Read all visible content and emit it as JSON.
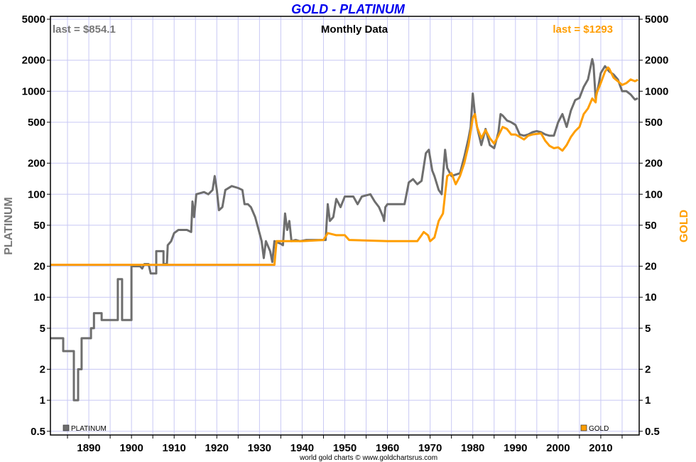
{
  "chart_data": {
    "type": "line",
    "title": "GOLD - PLATINUM",
    "subtitle": "Monthly Data",
    "credit": "world gold charts © www.goldchartsrus.com",
    "ylabel_left": "PLATINUM",
    "ylabel_right": "GOLD",
    "y_scale": "log",
    "ylim": [
      0.46,
      5330
    ],
    "xlim": [
      1881,
      2019
    ],
    "grid": true,
    "legend_placement": "bottom",
    "yticks": [
      0.5,
      1,
      2,
      5,
      10,
      20,
      50,
      100,
      200,
      500,
      1000,
      2000,
      5000
    ],
    "ytick_labels": [
      "0.5",
      "1",
      "2",
      "5",
      "10",
      "20",
      "50",
      "100",
      "200",
      "500",
      "1000",
      "2000",
      "5000"
    ],
    "xticks": [
      1890,
      1900,
      1910,
      1920,
      1930,
      1940,
      1950,
      1960,
      1970,
      1980,
      1990,
      2000,
      2010
    ],
    "xtick_labels": [
      "1890",
      "1900",
      "1910",
      "1920",
      "1930",
      "1940",
      "1950",
      "1960",
      "1970",
      "1980",
      "1990",
      "2000",
      "2010"
    ],
    "colors": {
      "platinum": "#6e6e6e",
      "gold": "#ff9e00",
      "title": "#0000ee",
      "grid": "#c8c8f4"
    },
    "series": [
      {
        "name": "PLATINUM",
        "last_label": "last = $854.1",
        "color": "#6e6e6e",
        "points": [
          [
            1881,
            4
          ],
          [
            1884,
            4
          ],
          [
            1884,
            3
          ],
          [
            1886.5,
            3
          ],
          [
            1886.5,
            1
          ],
          [
            1887.5,
            1
          ],
          [
            1887.5,
            2
          ],
          [
            1888.3,
            2
          ],
          [
            1888.3,
            4
          ],
          [
            1890.5,
            4
          ],
          [
            1890.5,
            5
          ],
          [
            1891.2,
            5
          ],
          [
            1891.2,
            7
          ],
          [
            1893,
            7
          ],
          [
            1893,
            6
          ],
          [
            1896.8,
            6
          ],
          [
            1896.8,
            15
          ],
          [
            1897.8,
            15
          ],
          [
            1897.8,
            6
          ],
          [
            1900,
            6
          ],
          [
            1900,
            20
          ],
          [
            1902,
            20
          ],
          [
            1902.5,
            19
          ],
          [
            1903,
            21
          ],
          [
            1904,
            21
          ],
          [
            1904.5,
            17
          ],
          [
            1905.8,
            17
          ],
          [
            1905.8,
            28
          ],
          [
            1907.5,
            28
          ],
          [
            1907.5,
            21
          ],
          [
            1908.3,
            21
          ],
          [
            1908.5,
            32
          ],
          [
            1909.3,
            35
          ],
          [
            1910,
            42
          ],
          [
            1911,
            45
          ],
          [
            1913,
            45
          ],
          [
            1914,
            43
          ],
          [
            1914.3,
            85
          ],
          [
            1914.7,
            60
          ],
          [
            1915.2,
            100
          ],
          [
            1917,
            105
          ],
          [
            1918,
            100
          ],
          [
            1919,
            110
          ],
          [
            1919.5,
            150
          ],
          [
            1920,
            110
          ],
          [
            1920.5,
            70
          ],
          [
            1921.3,
            75
          ],
          [
            1922,
            110
          ],
          [
            1923.5,
            120
          ],
          [
            1925,
            115
          ],
          [
            1926,
            110
          ],
          [
            1926.5,
            80
          ],
          [
            1927.3,
            80
          ],
          [
            1928,
            75
          ],
          [
            1929,
            60
          ],
          [
            1929.8,
            45
          ],
          [
            1930.5,
            35
          ],
          [
            1931,
            24
          ],
          [
            1931.5,
            35
          ],
          [
            1932.5,
            28
          ],
          [
            1933,
            22
          ],
          [
            1933.5,
            35
          ],
          [
            1935,
            33
          ],
          [
            1935.5,
            32
          ],
          [
            1936,
            65
          ],
          [
            1936.5,
            45
          ],
          [
            1937,
            55
          ],
          [
            1937.5,
            35
          ],
          [
            1938.5,
            36
          ],
          [
            1939.5,
            35
          ],
          [
            1941,
            36
          ],
          [
            1945.5,
            36
          ],
          [
            1946,
            80
          ],
          [
            1946.5,
            55
          ],
          [
            1947.3,
            60
          ],
          [
            1948,
            90
          ],
          [
            1949,
            75
          ],
          [
            1950,
            95
          ],
          [
            1952,
            95
          ],
          [
            1953,
            80
          ],
          [
            1954,
            95
          ],
          [
            1956,
            100
          ],
          [
            1957,
            85
          ],
          [
            1958,
            75
          ],
          [
            1959,
            60
          ],
          [
            1959.2,
            55
          ],
          [
            1959.5,
            75
          ],
          [
            1960,
            80
          ],
          [
            1963,
            80
          ],
          [
            1964,
            80
          ],
          [
            1965,
            130
          ],
          [
            1966,
            140
          ],
          [
            1967,
            125
          ],
          [
            1968,
            135
          ],
          [
            1969,
            250
          ],
          [
            1969.7,
            270
          ],
          [
            1970.5,
            170
          ],
          [
            1971,
            150
          ],
          [
            1972,
            110
          ],
          [
            1972.7,
            100
          ],
          [
            1973,
            150
          ],
          [
            1973.5,
            270
          ],
          [
            1974,
            180
          ],
          [
            1975,
            150
          ],
          [
            1976,
            155
          ],
          [
            1977,
            160
          ],
          [
            1978,
            230
          ],
          [
            1979,
            350
          ],
          [
            1979.5,
            450
          ],
          [
            1980,
            950
          ],
          [
            1980.5,
            600
          ],
          [
            1981,
            450
          ],
          [
            1982,
            300
          ],
          [
            1983,
            430
          ],
          [
            1984,
            300
          ],
          [
            1985,
            280
          ],
          [
            1986,
            400
          ],
          [
            1986.5,
            600
          ],
          [
            1987,
            580
          ],
          [
            1988,
            520
          ],
          [
            1989,
            500
          ],
          [
            1990,
            470
          ],
          [
            1991,
            380
          ],
          [
            1992,
            370
          ],
          [
            1993,
            380
          ],
          [
            1994,
            400
          ],
          [
            1995,
            410
          ],
          [
            1996,
            400
          ],
          [
            1997,
            380
          ],
          [
            1998,
            370
          ],
          [
            1999,
            370
          ],
          [
            2000,
            500
          ],
          [
            2001,
            600
          ],
          [
            2002,
            450
          ],
          [
            2003,
            650
          ],
          [
            2004,
            820
          ],
          [
            2005,
            860
          ],
          [
            2006,
            1100
          ],
          [
            2007,
            1300
          ],
          [
            2008,
            2050
          ],
          [
            2008.3,
            1800
          ],
          [
            2008.8,
            850
          ],
          [
            2009.5,
            1150
          ],
          [
            2010,
            1500
          ],
          [
            2011,
            1750
          ],
          [
            2012,
            1550
          ],
          [
            2013,
            1450
          ],
          [
            2014,
            1300
          ],
          [
            2015,
            1000
          ],
          [
            2016,
            1000
          ],
          [
            2017,
            930
          ],
          [
            2018,
            830
          ],
          [
            2018.7,
            854.1
          ]
        ]
      },
      {
        "name": "GOLD",
        "last_label": "last = $1293",
        "color": "#ff9e00",
        "points": [
          [
            1881,
            20.67
          ],
          [
            1933.5,
            20.67
          ],
          [
            1934,
            35
          ],
          [
            1940,
            35
          ],
          [
            1945,
            36
          ],
          [
            1946,
            42
          ],
          [
            1948,
            40
          ],
          [
            1950,
            40
          ],
          [
            1951,
            36
          ],
          [
            1960,
            35
          ],
          [
            1967,
            35
          ],
          [
            1968,
            40
          ],
          [
            1968.5,
            43
          ],
          [
            1969.5,
            40
          ],
          [
            1970,
            35
          ],
          [
            1971,
            38
          ],
          [
            1972,
            55
          ],
          [
            1973,
            65
          ],
          [
            1973.5,
            100
          ],
          [
            1974,
            150
          ],
          [
            1975,
            160
          ],
          [
            1976,
            125
          ],
          [
            1977,
            150
          ],
          [
            1978,
            200
          ],
          [
            1979,
            300
          ],
          [
            1980,
            550
          ],
          [
            1980.5,
            600
          ],
          [
            1981,
            450
          ],
          [
            1982,
            350
          ],
          [
            1983,
            420
          ],
          [
            1984,
            350
          ],
          [
            1985,
            310
          ],
          [
            1986,
            370
          ],
          [
            1987,
            450
          ],
          [
            1988,
            430
          ],
          [
            1989,
            380
          ],
          [
            1990,
            380
          ],
          [
            1991,
            360
          ],
          [
            1992,
            340
          ],
          [
            1993,
            370
          ],
          [
            1994,
            380
          ],
          [
            1995,
            385
          ],
          [
            1996,
            390
          ],
          [
            1997,
            330
          ],
          [
            1998,
            295
          ],
          [
            1999,
            280
          ],
          [
            2000,
            285
          ],
          [
            2001,
            265
          ],
          [
            2002,
            300
          ],
          [
            2003,
            360
          ],
          [
            2004,
            410
          ],
          [
            2005,
            450
          ],
          [
            2006,
            600
          ],
          [
            2007,
            680
          ],
          [
            2008,
            850
          ],
          [
            2008.8,
            780
          ],
          [
            2009,
            950
          ],
          [
            2010,
            1200
          ],
          [
            2011,
            1550
          ],
          [
            2011.7,
            1700
          ],
          [
            2012,
            1650
          ],
          [
            2013,
            1350
          ],
          [
            2014,
            1250
          ],
          [
            2015,
            1150
          ],
          [
            2016,
            1200
          ],
          [
            2017,
            1300
          ],
          [
            2018,
            1250
          ],
          [
            2018.7,
            1293
          ]
        ]
      }
    ]
  }
}
